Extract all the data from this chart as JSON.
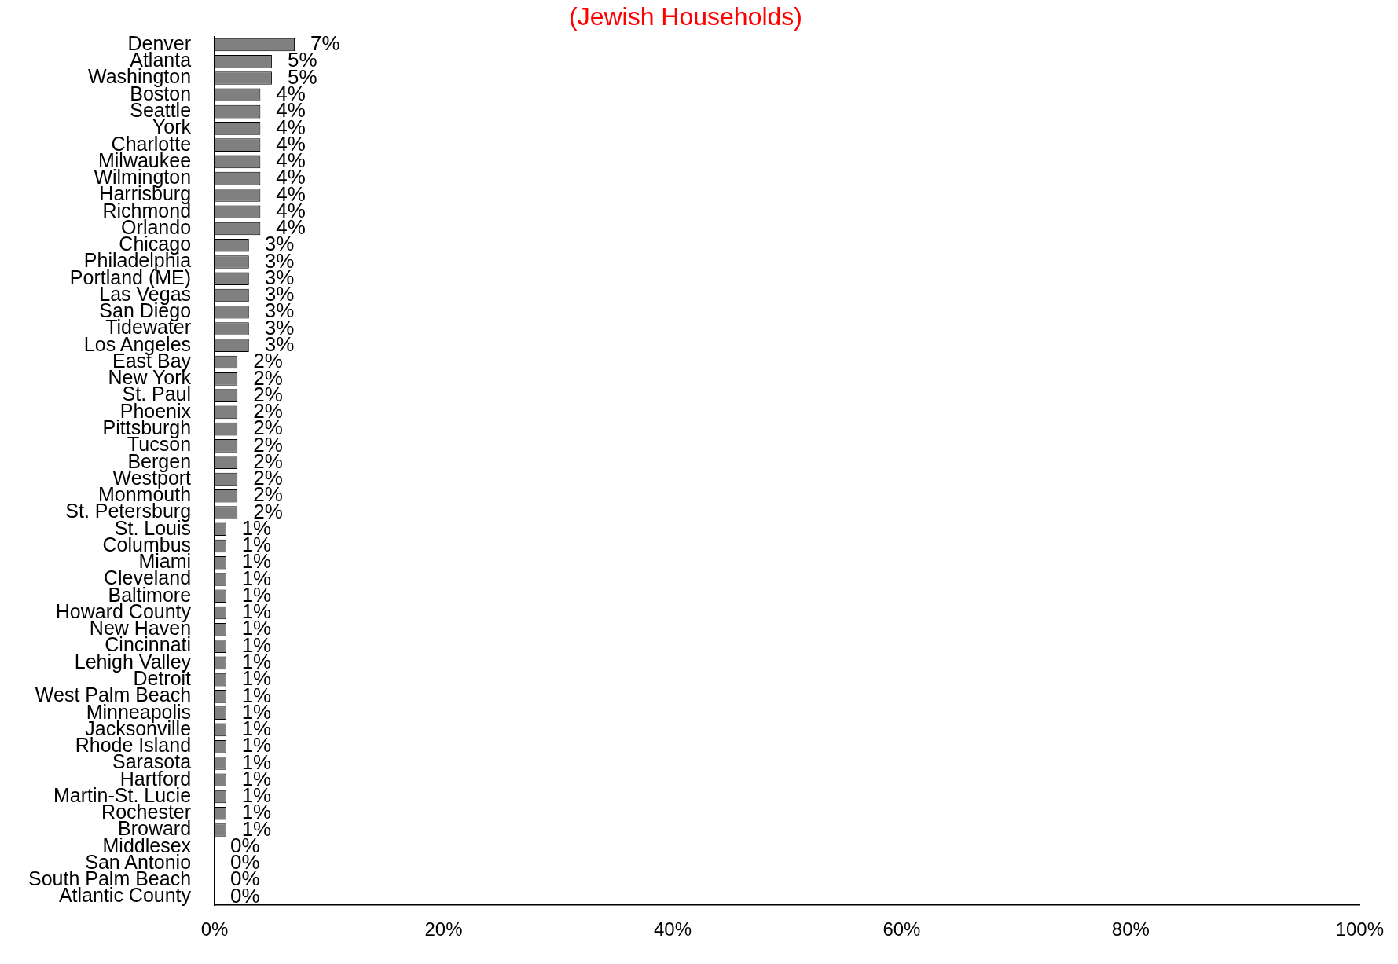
{
  "chart_data": {
    "type": "bar",
    "orientation": "horizontal",
    "title": "(Jewish Households)",
    "categories": [
      "Denver",
      "Atlanta",
      "Washington",
      "Boston",
      "Seattle",
      "York",
      "Charlotte",
      "Milwaukee",
      "Wilmington",
      "Harrisburg",
      "Richmond",
      "Orlando",
      "Chicago",
      "Philadelphia",
      "Portland (ME)",
      "Las Vegas",
      "San Diego",
      "Tidewater",
      "Los Angeles",
      "East Bay",
      "New York",
      "St. Paul",
      "Phoenix",
      "Pittsburgh",
      "Tucson",
      "Bergen",
      "Westport",
      "Monmouth",
      "St. Petersburg",
      "St. Louis",
      "Columbus",
      "Miami",
      "Cleveland",
      "Baltimore",
      "Howard County",
      "New Haven",
      "Cincinnati",
      "Lehigh Valley",
      "Detroit",
      "West Palm Beach",
      "Minneapolis",
      "Jacksonville",
      "Rhode Island",
      "Sarasota",
      "Hartford",
      "Martin-St. Lucie",
      "Rochester",
      "Broward",
      "Middlesex",
      "San Antonio",
      "South Palm Beach",
      "Atlantic County"
    ],
    "values": [
      7,
      5,
      5,
      4,
      4,
      4,
      4,
      4,
      4,
      4,
      4,
      4,
      3,
      3,
      3,
      3,
      3,
      3,
      3,
      2,
      2,
      2,
      2,
      2,
      2,
      2,
      2,
      2,
      2,
      1,
      1,
      1,
      1,
      1,
      1,
      1,
      1,
      1,
      1,
      1,
      1,
      1,
      1,
      1,
      1,
      1,
      1,
      1,
      0,
      0,
      0,
      0
    ],
    "value_labels": [
      "7%",
      "5%",
      "5%",
      "4%",
      "4%",
      "4%",
      "4%",
      "4%",
      "4%",
      "4%",
      "4%",
      "4%",
      "3%",
      "3%",
      "3%",
      "3%",
      "3%",
      "3%",
      "3%",
      "2%",
      "2%",
      "2%",
      "2%",
      "2%",
      "2%",
      "2%",
      "2%",
      "2%",
      "2%",
      "1%",
      "1%",
      "1%",
      "1%",
      "1%",
      "1%",
      "1%",
      "1%",
      "1%",
      "1%",
      "1%",
      "1%",
      "1%",
      "1%",
      "1%",
      "1%",
      "1%",
      "1%",
      "1%",
      "0%",
      "0%",
      "0%",
      "0%"
    ],
    "color": "#808080",
    "xlim": [
      0,
      100
    ],
    "xticks": [
      {
        "value": 0,
        "label": "0%"
      },
      {
        "value": 20,
        "label": "20%"
      },
      {
        "value": 40,
        "label": "40%"
      },
      {
        "value": 60,
        "label": "60%"
      },
      {
        "value": 80,
        "label": "80%"
      },
      {
        "value": 100,
        "label": "100%"
      }
    ],
    "grid": false,
    "legend": false
  }
}
